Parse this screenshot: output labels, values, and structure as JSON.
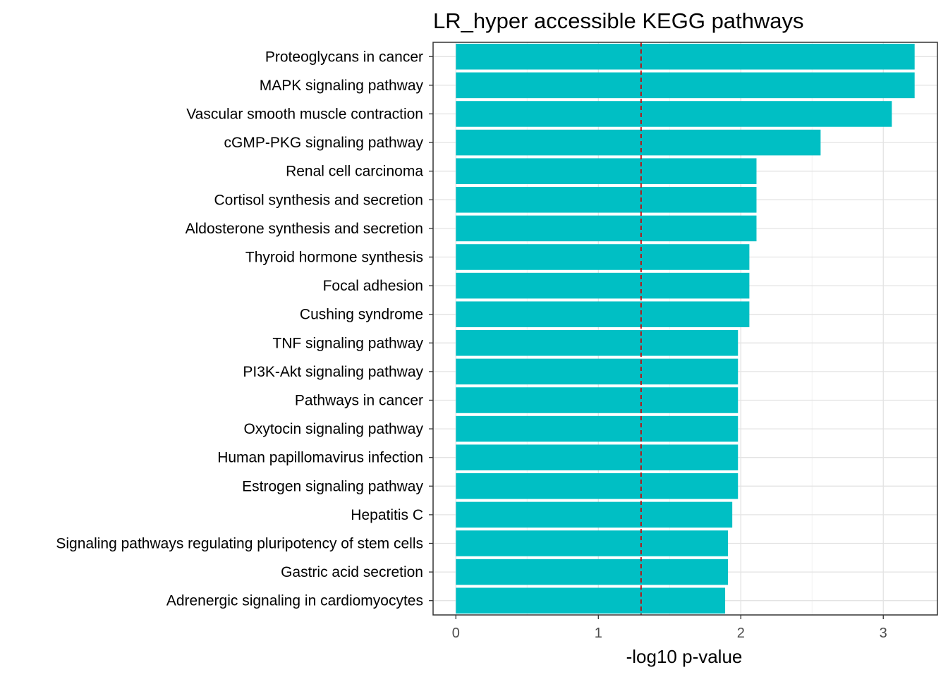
{
  "chart_data": {
    "type": "bar",
    "orientation": "horizontal",
    "title": "LR_hyper accessible KEGG pathways",
    "xlabel": "-log10 p-value",
    "ylabel": "",
    "xlim": [
      -0.16,
      3.38
    ],
    "x_ticks": [
      0,
      1,
      2,
      3
    ],
    "x_tick_labels": [
      "0",
      "1",
      "2",
      "3"
    ],
    "threshold_line": {
      "value": 1.3,
      "style": "dashed",
      "color": "#cc0000"
    },
    "bar_color": "#00bfc4",
    "grid": true,
    "legend": "none",
    "categories": [
      "Proteoglycans in cancer",
      "MAPK signaling pathway",
      "Vascular smooth muscle contraction",
      "cGMP-PKG signaling pathway",
      "Renal cell carcinoma",
      "Cortisol synthesis and secretion",
      "Aldosterone synthesis and secretion",
      "Thyroid hormone synthesis",
      "Focal adhesion",
      "Cushing syndrome",
      "TNF signaling pathway",
      "PI3K-Akt signaling pathway",
      "Pathways in cancer",
      "Oxytocin signaling pathway",
      "Human papillomavirus infection",
      "Estrogen signaling pathway",
      "Hepatitis C",
      "Signaling pathways regulating pluripotency of stem cells",
      "Gastric acid secretion",
      "Adrenergic signaling in cardiomyocytes"
    ],
    "values": [
      3.22,
      3.22,
      3.06,
      2.56,
      2.11,
      2.11,
      2.11,
      2.06,
      2.06,
      2.06,
      1.98,
      1.98,
      1.98,
      1.98,
      1.98,
      1.98,
      1.94,
      1.91,
      1.91,
      1.89
    ]
  }
}
